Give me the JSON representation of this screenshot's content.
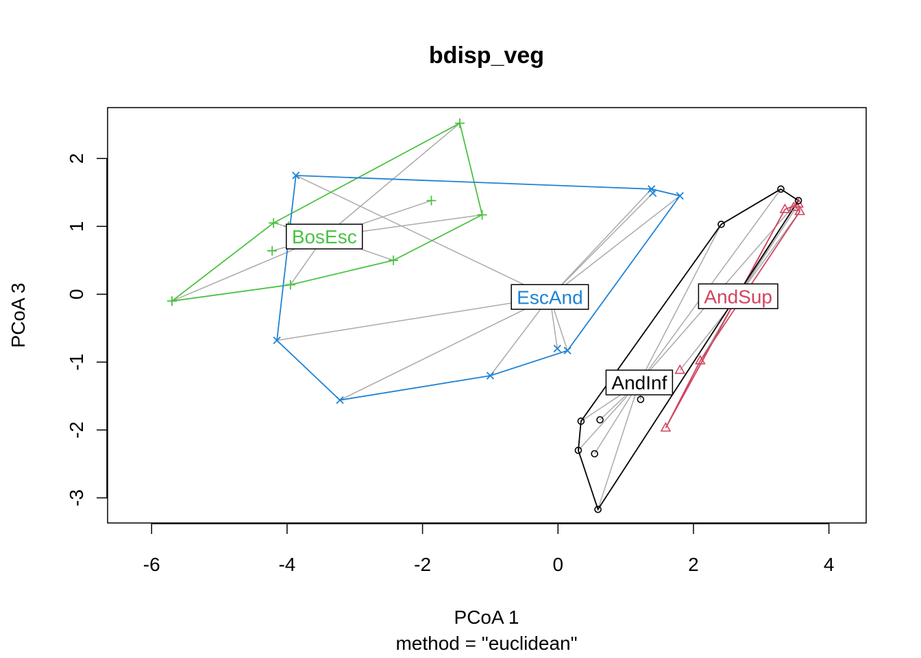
{
  "chart_data": {
    "type": "scatter",
    "title": "bdisp_veg",
    "xlabel": "PCoA 1",
    "ylabel": "PCoA 3",
    "sub": "method = \"euclidean\"",
    "xlim": [
      -6.65,
      4.55
    ],
    "ylim": [
      -3.37,
      2.75
    ],
    "xticks": [
      -6,
      -4,
      -2,
      0,
      2,
      4
    ],
    "yticks": [
      -3,
      -2,
      -1,
      0,
      1,
      2
    ],
    "xtick_labels": [
      "-6",
      "-4",
      "-2",
      "0",
      "2",
      "4"
    ],
    "ytick_labels": [
      "-3",
      "-2",
      "-1",
      "0",
      "1",
      "2"
    ],
    "spider_color": "#aaaaaa",
    "groups": [
      {
        "label": "BosEsc",
        "color": "#4ac240",
        "symbol": "plus",
        "centroid": [
          -3.45,
          0.85
        ],
        "points": [
          [
            -5.7,
            -0.1
          ],
          [
            -4.2,
            1.05
          ],
          [
            -1.45,
            2.52
          ],
          [
            -1.12,
            1.17
          ],
          [
            -2.43,
            0.5
          ],
          [
            -3.95,
            0.14
          ],
          [
            -4.22,
            0.64
          ],
          [
            -3.98,
            1.0
          ],
          [
            -1.87,
            1.38
          ]
        ],
        "hull": [
          0,
          1,
          2,
          3,
          4,
          5,
          0
        ]
      },
      {
        "label": "EscAnd",
        "color": "#1f82d5",
        "symbol": "cross",
        "centroid": [
          -0.12,
          -0.04
        ],
        "points": [
          [
            -3.87,
            1.75
          ],
          [
            1.38,
            1.55
          ],
          [
            1.8,
            1.45
          ],
          [
            0.14,
            -0.83
          ],
          [
            -1.0,
            -1.2
          ],
          [
            -3.22,
            -1.56
          ],
          [
            -4.15,
            -0.68
          ],
          [
            -0.01,
            -0.8
          ],
          [
            1.4,
            1.49
          ]
        ],
        "hull": [
          0,
          1,
          2,
          3,
          4,
          5,
          6,
          0
        ]
      },
      {
        "label": "AndSup",
        "color": "#d2445f",
        "symbol": "triangle",
        "centroid": [
          2.66,
          -0.03
        ],
        "points": [
          [
            3.35,
            1.25
          ],
          [
            3.55,
            1.33
          ],
          [
            3.57,
            1.22
          ],
          [
            2.1,
            -0.98
          ],
          [
            1.59,
            -1.97
          ],
          [
            1.8,
            -1.12
          ],
          [
            3.48,
            1.28
          ]
        ],
        "hull": [
          0,
          1,
          2,
          3,
          4,
          0
        ]
      },
      {
        "label": "AndInf",
        "color": "#000000",
        "symbol": "circle",
        "centroid": [
          1.2,
          -1.3
        ],
        "points": [
          [
            3.29,
            1.55
          ],
          [
            3.55,
            1.38
          ],
          [
            0.59,
            -3.17
          ],
          [
            0.3,
            -2.3
          ],
          [
            0.34,
            -1.87
          ],
          [
            2.41,
            1.03
          ],
          [
            1.22,
            -1.55
          ],
          [
            0.62,
            -1.85
          ],
          [
            0.54,
            -2.35
          ]
        ],
        "hull": [
          0,
          1,
          2,
          3,
          4,
          5,
          0
        ]
      }
    ]
  }
}
